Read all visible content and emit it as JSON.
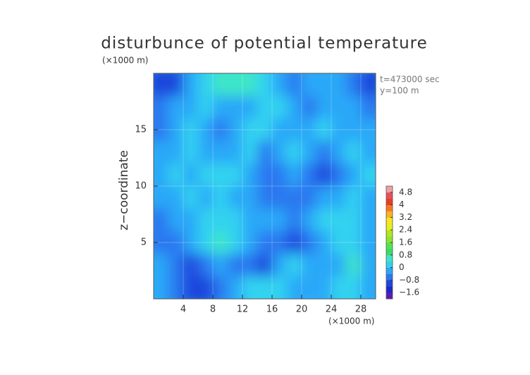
{
  "chart_data": {
    "type": "contour",
    "title": "disturbunce of potential temperature",
    "y_unit": "(×1000 m)",
    "x_unit": "(×1000 m)",
    "annotations": [
      "t=473000 sec",
      "y=100 m"
    ],
    "ylabel": "z−coordinate",
    "xlim": [
      0,
      30
    ],
    "ylim": [
      0,
      20
    ],
    "xticks": [
      4,
      8,
      12,
      16,
      20,
      24,
      28
    ],
    "yticks": [
      5,
      10,
      15
    ],
    "grid": true,
    "x": [
      1,
      3,
      5,
      7,
      9,
      11,
      13,
      15,
      17,
      19,
      21,
      23,
      25,
      27,
      29
    ],
    "y": [
      19,
      17,
      15,
      13,
      11,
      9,
      7,
      5,
      3,
      1
    ],
    "z": [
      [
        -1.2,
        -1.0,
        -0.4,
        0.2,
        0.4,
        0.6,
        0.4,
        0,
        -0.4,
        -0.6,
        -0.4,
        -0.2,
        -0.4,
        -0.8,
        -1.0
      ],
      [
        -0.6,
        -0.4,
        -0.2,
        0,
        -0.2,
        -0.4,
        -0.2,
        0.2,
        0,
        -0.4,
        -0.6,
        -0.4,
        -0.2,
        -0.4,
        -0.6
      ],
      [
        -0.8,
        -0.4,
        0,
        -0.4,
        -0.8,
        -0.4,
        0,
        0.2,
        -0.2,
        -0.4,
        -0.2,
        0,
        -0.2,
        -0.4,
        -0.2
      ],
      [
        -0.4,
        -0.2,
        0,
        -0.2,
        -0.4,
        -0.2,
        0,
        -0.6,
        -0.2,
        0,
        -0.4,
        -0.6,
        -0.2,
        0,
        -0.2
      ],
      [
        -0.2,
        0,
        -0.2,
        0,
        0.2,
        0,
        -0.4,
        -0.8,
        -0.6,
        -0.4,
        -0.8,
        -1.0,
        -0.6,
        -0.2,
        0
      ],
      [
        -0.4,
        -0.2,
        0,
        -0.2,
        0,
        -0.2,
        -0.4,
        -0.6,
        -0.8,
        -0.6,
        -0.8,
        -0.4,
        -0.2,
        0,
        -0.2
      ],
      [
        -0.6,
        -0.4,
        -0.2,
        0,
        0.2,
        0,
        -0.2,
        -0.4,
        -0.4,
        -0.6,
        -0.2,
        0.2,
        0.2,
        0,
        -0.2
      ],
      [
        -0.8,
        -0.6,
        -0.2,
        0,
        0.4,
        0.2,
        -0.2,
        -0.6,
        -0.8,
        -1.0,
        -0.6,
        -0.2,
        0,
        0.2,
        -0.4
      ],
      [
        -0.4,
        -0.8,
        -1.0,
        -0.6,
        -0.2,
        -0.6,
        -0.8,
        -1.0,
        -0.4,
        0.2,
        -0.2,
        -0.4,
        -0.2,
        0.4,
        -0.2
      ],
      [
        -0.2,
        -0.6,
        -1.0,
        -1.2,
        -0.8,
        -0.4,
        0,
        0.2,
        0,
        -0.2,
        -0.4,
        -0.2,
        0,
        0,
        -0.2
      ]
    ],
    "colorbar": {
      "levels": [
        -2,
        -1.6,
        -1.2,
        -0.8,
        -0.4,
        0,
        0.4,
        0.8,
        1.2,
        1.6,
        2,
        2.4,
        2.8,
        3.2,
        3.6,
        4,
        4.4,
        4.8,
        5.2
      ],
      "colors": [
        "#5a1ab4",
        "#1e28c8",
        "#1e46dc",
        "#2a78f0",
        "#2aa8f8",
        "#30d2f0",
        "#3ce6c8",
        "#3cdc64",
        "#50e650",
        "#8ce628",
        "#b4e61e",
        "#e6f01e",
        "#fae61e",
        "#fab41e",
        "#fa781e",
        "#f03c1e",
        "#e6505a",
        "#f0a0a0"
      ],
      "ticks": [
        {
          "value": -1.6,
          "label": "−1.6"
        },
        {
          "value": -0.8,
          "label": "−0.8"
        },
        0,
        0.8,
        1.6,
        2.4,
        3.2,
        4,
        4.8
      ]
    }
  }
}
